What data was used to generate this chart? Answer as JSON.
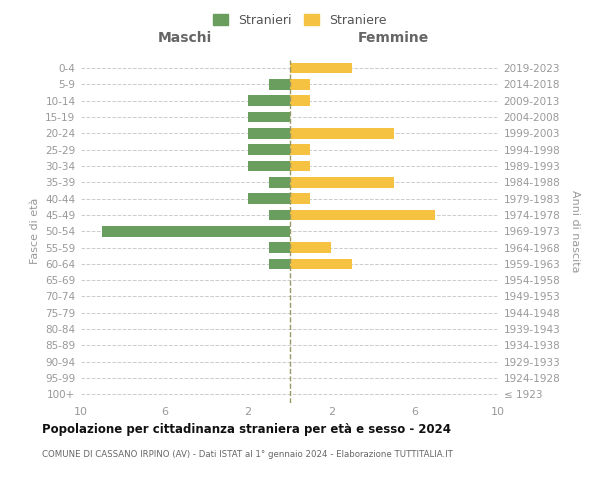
{
  "age_groups": [
    "100+",
    "95-99",
    "90-94",
    "85-89",
    "80-84",
    "75-79",
    "70-74",
    "65-69",
    "60-64",
    "55-59",
    "50-54",
    "45-49",
    "40-44",
    "35-39",
    "30-34",
    "25-29",
    "20-24",
    "15-19",
    "10-14",
    "5-9",
    "0-4"
  ],
  "birth_years": [
    "≤ 1923",
    "1924-1928",
    "1929-1933",
    "1934-1938",
    "1939-1943",
    "1944-1948",
    "1949-1953",
    "1954-1958",
    "1959-1963",
    "1964-1968",
    "1969-1973",
    "1974-1978",
    "1979-1983",
    "1984-1988",
    "1989-1993",
    "1994-1998",
    "1999-2003",
    "2004-2008",
    "2009-2013",
    "2014-2018",
    "2019-2023"
  ],
  "males": [
    0,
    0,
    0,
    0,
    0,
    0,
    0,
    0,
    1,
    1,
    9,
    1,
    2,
    1,
    2,
    2,
    2,
    2,
    2,
    1,
    0
  ],
  "females": [
    0,
    0,
    0,
    0,
    0,
    0,
    0,
    0,
    3,
    2,
    0,
    7,
    1,
    5,
    1,
    1,
    5,
    0,
    1,
    1,
    3
  ],
  "male_color": "#6a9e5e",
  "female_color": "#f5c242",
  "male_label": "Stranieri",
  "female_label": "Straniere",
  "title": "Popolazione per cittadinanza straniera per età e sesso - 2024",
  "subtitle": "COMUNE DI CASSANO IRPINO (AV) - Dati ISTAT al 1° gennaio 2024 - Elaborazione TUTTITALIA.IT",
  "xlabel_left": "Maschi",
  "xlabel_right": "Femmine",
  "ylabel_left": "Fasce di età",
  "ylabel_right": "Anni di nascita",
  "xlim": 10,
  "background_color": "#ffffff",
  "grid_color": "#cccccc",
  "tick_color": "#999999",
  "center_line_color": "#aaaaaa",
  "header_label_color": "#666666",
  "title_color": "#111111",
  "subtitle_color": "#666666"
}
